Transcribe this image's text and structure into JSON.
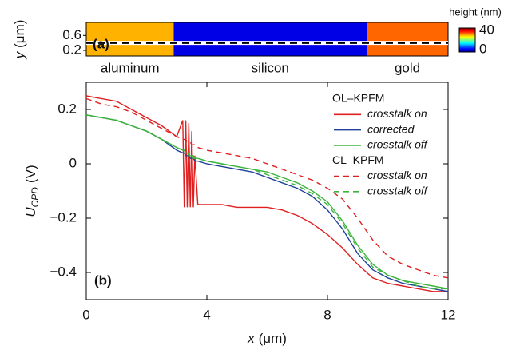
{
  "chart_data": [
    {
      "type": "heatmap",
      "panel_label": "(a)",
      "ylabel": "y",
      "ylabel_unit": "(μm)",
      "xlim": [
        0,
        12
      ],
      "ylim": [
        0.05,
        0.95
      ],
      "yticks": [
        0.2,
        0.6
      ],
      "regions": [
        {
          "label": "aluminum",
          "x0": 0,
          "x1": 2.9,
          "height": 28
        },
        {
          "label": "silicon",
          "x0": 2.9,
          "x1": 9.3,
          "height": 4
        },
        {
          "label": "gold",
          "x0": 9.3,
          "x1": 12,
          "height": 31
        }
      ],
      "profile_y": 0.4,
      "colorbar_label": "height (nm)",
      "clim": [
        0,
        40
      ],
      "cticks": [
        40,
        0
      ]
    },
    {
      "type": "line",
      "panel_label": "(b)",
      "xlabel": "x",
      "xlabel_unit": "(μm)",
      "ylabel": "U",
      "ylabel_sub": "CPD",
      "ylabel_unit": "(V)",
      "xlim": [
        0,
        12
      ],
      "ylim": [
        -0.5,
        0.3
      ],
      "xticks": [
        0,
        4,
        8,
        12
      ],
      "yticks": [
        0.2,
        0,
        {
          "value": -0.2,
          "label": "−0.2"
        },
        {
          "value": -0.4,
          "label": "−0.4"
        }
      ],
      "legend_groups": [
        "OL–KPFM",
        "CL–KPFM"
      ],
      "x": [
        0,
        0.5,
        1,
        1.5,
        2,
        2.5,
        3,
        3.2,
        3.25,
        3.3,
        3.35,
        3.4,
        3.45,
        3.5,
        3.55,
        3.6,
        3.7,
        4,
        4.5,
        5,
        5.5,
        6,
        6.5,
        7,
        7.5,
        8,
        8.5,
        9,
        9.5,
        10,
        10.5,
        11,
        11.5,
        12
      ],
      "series": [
        {
          "name": "crosstalk on",
          "group": 0,
          "dashed": false,
          "color": "#e02020",
          "values": [
            0.25,
            0.24,
            0.23,
            0.2,
            0.17,
            0.14,
            0.1,
            0.16,
            -0.16,
            0.16,
            -0.16,
            0.15,
            -0.16,
            0.12,
            -0.16,
            0.03,
            -0.15,
            -0.15,
            -0.15,
            -0.16,
            -0.16,
            -0.16,
            -0.17,
            -0.19,
            -0.22,
            -0.26,
            -0.31,
            -0.37,
            -0.42,
            -0.44,
            -0.45,
            -0.46,
            -0.47,
            -0.47
          ]
        },
        {
          "name": "corrected",
          "group": 0,
          "dashed": false,
          "color": "#1f3f9a",
          "values": [
            0.18,
            0.17,
            0.16,
            0.14,
            0.12,
            0.09,
            0.05,
            0.04,
            0.04,
            0.03,
            0.03,
            0.03,
            0.02,
            0.02,
            0.02,
            0.01,
            0.01,
            0.0,
            -0.01,
            -0.02,
            -0.03,
            -0.05,
            -0.07,
            -0.09,
            -0.12,
            -0.17,
            -0.24,
            -0.33,
            -0.39,
            -0.42,
            -0.44,
            -0.45,
            -0.46,
            -0.47
          ]
        },
        {
          "name": "crosstalk off",
          "group": 0,
          "dashed": false,
          "color": "#3cb43c",
          "values": [
            0.18,
            0.17,
            0.16,
            0.14,
            0.12,
            0.09,
            0.06,
            0.05,
            0.05,
            0.04,
            0.04,
            0.03,
            0.03,
            0.03,
            0.02,
            0.02,
            0.02,
            0.01,
            0.0,
            -0.01,
            -0.02,
            -0.03,
            -0.05,
            -0.07,
            -0.1,
            -0.14,
            -0.21,
            -0.3,
            -0.37,
            -0.41,
            -0.43,
            -0.44,
            -0.45,
            -0.46
          ]
        },
        {
          "name": "crosstalk on",
          "group": 1,
          "dashed": true,
          "color": "#e02020",
          "values": [
            0.24,
            0.22,
            0.21,
            0.19,
            0.16,
            0.13,
            0.1,
            0.09,
            0.09,
            0.09,
            0.08,
            0.08,
            0.08,
            0.07,
            0.07,
            0.07,
            0.06,
            0.05,
            0.04,
            0.03,
            0.02,
            0.0,
            -0.02,
            -0.04,
            -0.06,
            -0.09,
            -0.13,
            -0.2,
            -0.28,
            -0.34,
            -0.37,
            -0.39,
            -0.41,
            -0.42
          ]
        },
        {
          "name": "crosstalk off",
          "group": 1,
          "dashed": true,
          "color": "#3cb43c",
          "values": [
            0.18,
            0.17,
            0.16,
            0.14,
            0.12,
            0.09,
            0.06,
            0.05,
            0.05,
            0.04,
            0.04,
            0.04,
            0.03,
            0.03,
            0.03,
            0.02,
            0.02,
            0.01,
            0.0,
            -0.01,
            -0.02,
            -0.04,
            -0.06,
            -0.08,
            -0.11,
            -0.15,
            -0.22,
            -0.31,
            -0.38,
            -0.41,
            -0.43,
            -0.45,
            -0.46,
            -0.46
          ]
        }
      ]
    }
  ]
}
